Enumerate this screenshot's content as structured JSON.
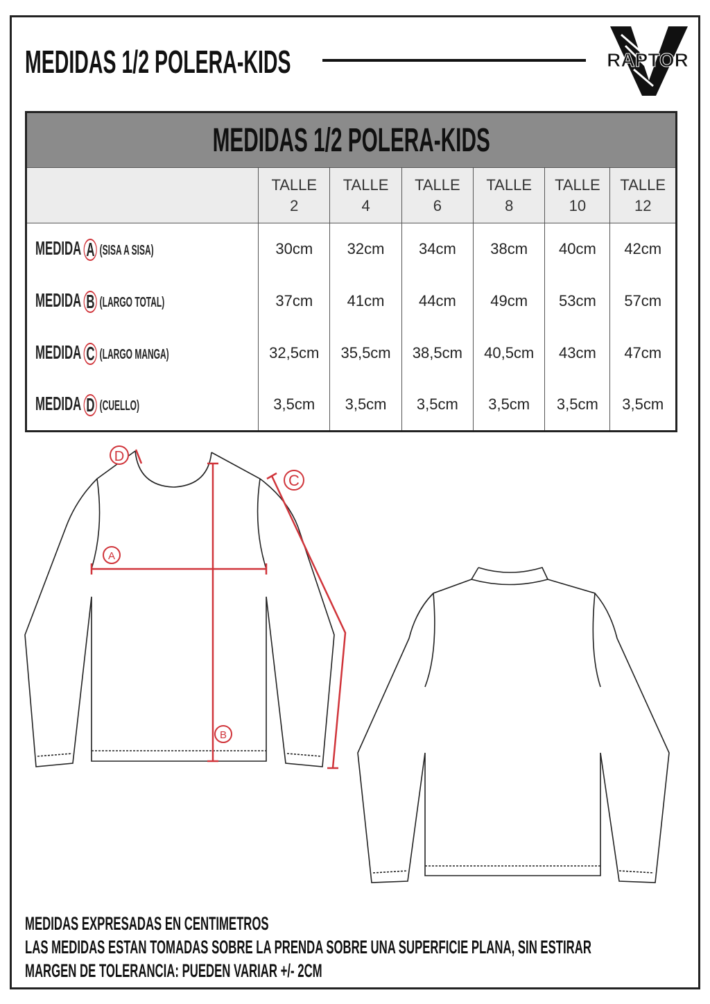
{
  "header": {
    "title": "MEDIDAS 1/2 POLERA-KIDS",
    "logo_text": "RAPTOR"
  },
  "table": {
    "title": "MEDIDAS 1/2 POLERA-KIDS",
    "columns": [
      {
        "l1": "TALLE",
        "l2": "2"
      },
      {
        "l1": "TALLE",
        "l2": "4"
      },
      {
        "l1": "TALLE",
        "l2": "6"
      },
      {
        "l1": "TALLE",
        "l2": "8"
      },
      {
        "l1": "TALLE",
        "l2": "10"
      },
      {
        "l1": "TALLE",
        "l2": "12"
      }
    ],
    "rows": [
      {
        "label": "MEDIDA",
        "letter": "A",
        "desc": "(SISA A SISA)",
        "values": [
          "30cm",
          "32cm",
          "34cm",
          "38cm",
          "40cm",
          "42cm"
        ]
      },
      {
        "label": "MEDIDA",
        "letter": "B",
        "desc": "(LARGO TOTAL)",
        "values": [
          "37cm",
          "41cm",
          "44cm",
          "49cm",
          "53cm",
          "57cm"
        ]
      },
      {
        "label": "MEDIDA",
        "letter": "C",
        "desc": "(LARGO MANGA)",
        "values": [
          "32,5cm",
          "35,5cm",
          "38,5cm",
          "40,5cm",
          "43cm",
          "47cm"
        ]
      },
      {
        "label": "MEDIDA",
        "letter": "D",
        "desc": "(CUELLO)",
        "values": [
          "3,5cm",
          "3,5cm",
          "3,5cm",
          "3,5cm",
          "3,5cm",
          "3,5cm"
        ]
      }
    ]
  },
  "diagram": {
    "markers": [
      "A",
      "B",
      "C",
      "D"
    ],
    "accent": "#d0343a"
  },
  "notes": [
    "MEDIDAS EXPRESADAS EN CENTIMETROS",
    "LAS MEDIDAS ESTAN TOMADAS SOBRE LA PRENDA SOBRE UNA SUPERFICIE PLANA, SIN ESTIRAR",
    "MARGEN DE TOLERANCIA: PUEDEN VARIAR +/- 2CM"
  ]
}
